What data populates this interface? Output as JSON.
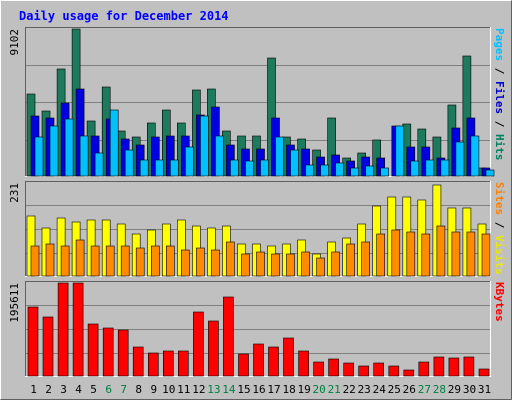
{
  "chart_data": {
    "type": "bar",
    "title": "Daily usage for December 2014",
    "categories": [
      "1",
      "2",
      "3",
      "4",
      "5",
      "6",
      "7",
      "8",
      "9",
      "10",
      "11",
      "12",
      "13",
      "14",
      "15",
      "16",
      "17",
      "18",
      "19",
      "20",
      "21",
      "22",
      "23",
      "24",
      "25",
      "26",
      "27",
      "28",
      "29",
      "30",
      "31"
    ],
    "weekend_days": [
      "6",
      "7",
      "13",
      "14",
      "20",
      "21",
      "27",
      "28"
    ],
    "panels": [
      {
        "id": "top",
        "ymax_label": "9102",
        "ylim": [
          0,
          9102
        ],
        "axis_legend": [
          {
            "text": "Pages",
            "color": "#00c0ff"
          },
          {
            "text": " / ",
            "color": "#000000"
          },
          {
            "text": "Files",
            "color": "#0000d0"
          },
          {
            "text": " / ",
            "color": "#000000"
          },
          {
            "text": "Hits",
            "color": "#008060"
          }
        ],
        "series": [
          {
            "name": "Hits",
            "color": "#1d7a5c",
            "values": [
              5100,
              4000,
              6600,
              9102,
              3400,
              5500,
              2800,
              2400,
              3300,
              4100,
              3300,
              5300,
              5400,
              2800,
              2500,
              2500,
              7300,
              2400,
              2300,
              1600,
              3600,
              1100,
              1400,
              2200,
              0,
              3200,
              2900,
              2400,
              4400,
              7400,
              500
            ]
          },
          {
            "name": "Files",
            "color": "#0000e0",
            "values": [
              3700,
              3600,
              4500,
              5400,
              2500,
              3500,
              2300,
              1900,
              2400,
              2500,
              2500,
              3800,
              4300,
              1900,
              1700,
              1700,
              3600,
              1900,
              1700,
              1200,
              1300,
              900,
              1200,
              1100,
              3100,
              1800,
              1800,
              1100,
              3000,
              3600,
              500
            ]
          },
          {
            "name": "Pages",
            "color": "#00c0ff",
            "values": [
              2400,
              3100,
              3500,
              2500,
              1400,
              4100,
              1600,
              1000,
              1000,
              1000,
              1800,
              3700,
              2500,
              1000,
              900,
              1000,
              2400,
              1600,
              700,
              700,
              800,
              500,
              600,
              500,
              3100,
              900,
              1000,
              1000,
              2100,
              2500,
              400
            ]
          }
        ]
      },
      {
        "id": "middle",
        "ymax_label": "231",
        "ylim": [
          0,
          231
        ],
        "axis_legend": [
          {
            "text": "Sites",
            "color": "#ff8000"
          },
          {
            "text": " / ",
            "color": "#000000"
          },
          {
            "text": "Visits",
            "color": "#e8e800"
          }
        ],
        "series": [
          {
            "name": "Visits",
            "color": "#ffff00",
            "values": [
              150,
              120,
              145,
              135,
              140,
              140,
              130,
              105,
              115,
              130,
              140,
              125,
              120,
              125,
              80,
              80,
              75,
              80,
              90,
              55,
              85,
              95,
              130,
              175,
              195,
              195,
              190,
              227,
              170,
              170,
              130
            ]
          },
          {
            "name": "Sites",
            "color": "#ff8c00",
            "values": [
              75,
              80,
              75,
              90,
              75,
              75,
              75,
              70,
              75,
              75,
              65,
              70,
              65,
              85,
              55,
              60,
              55,
              55,
              60,
              45,
              60,
              80,
              85,
              105,
              115,
              110,
              105,
              125,
              110,
              110,
              105
            ]
          }
        ]
      },
      {
        "id": "bottom",
        "ymax_label": "195611",
        "ylim": [
          0,
          195611
        ],
        "axis_legend": [
          {
            "text": "KBytes",
            "color": "#ff0000"
          }
        ],
        "series": [
          {
            "name": "KBytes",
            "color": "#ff0000",
            "values": [
              146000,
              125000,
              195611,
              195611,
              110000,
              100000,
              97000,
              62000,
              48000,
              53000,
              53000,
              134000,
              115000,
              167000,
              47000,
              68000,
              60000,
              80000,
              53000,
              29000,
              35000,
              27000,
              20000,
              27000,
              20000,
              12000,
              30000,
              40000,
              38000,
              40000,
              15000
            ]
          }
        ]
      }
    ]
  },
  "colors": {
    "page_bg": "#c0c0c0",
    "plot_bg": "#c0c0c0",
    "title": "#0000ff",
    "axis_text": "#000000",
    "weekend_label": "#008040",
    "grid": "#808080"
  }
}
